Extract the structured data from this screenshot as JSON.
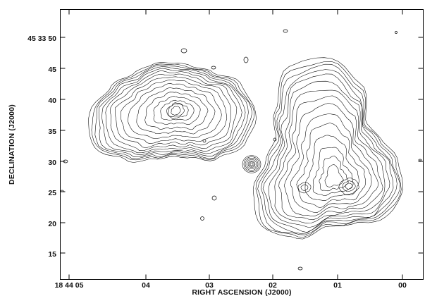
{
  "x_axis": {
    "title": "RIGHT ASCENSION (J2000)",
    "ticks": [
      "18 44 05",
      "04",
      "03",
      "02",
      "01",
      "00"
    ]
  },
  "y_axis": {
    "title": "DECLINATION (J2000)",
    "ticks": [
      "45 33 50",
      "45",
      "40",
      "35",
      "30",
      "25",
      "20",
      "15"
    ]
  },
  "style": {
    "line_color": "#000000",
    "background": "#ffffff"
  }
}
